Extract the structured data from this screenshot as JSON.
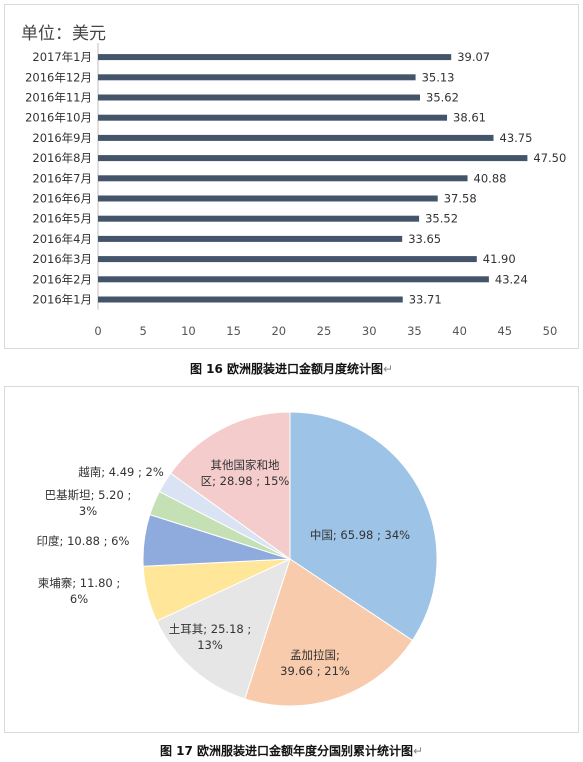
{
  "chart_data": [
    {
      "type": "bar",
      "orientation": "horizontal",
      "unit_label": "单位：美元",
      "categories": [
        "2017年1月",
        "2016年12月",
        "2016年11月",
        "2016年10月",
        "2016年9月",
        "2016年8月",
        "2016年7月",
        "2016年6月",
        "2016年5月",
        "2016年4月",
        "2016年3月",
        "2016年2月",
        "2016年1月"
      ],
      "values": [
        39.07,
        35.13,
        35.62,
        38.61,
        43.75,
        47.5,
        40.88,
        37.58,
        35.52,
        33.65,
        41.9,
        43.24,
        33.71
      ],
      "value_labels": [
        "39.07",
        "35.13",
        "35.62",
        "38.61",
        "43.75",
        "47.50",
        "40.88",
        "37.58",
        "35.52",
        "33.65",
        "41.90",
        "43.24",
        "33.71"
      ],
      "xlim": [
        0,
        50
      ],
      "xticks": [
        0,
        5,
        10,
        15,
        20,
        25,
        30,
        35,
        40,
        45,
        50
      ],
      "bar_color": "#44546a",
      "grid": false,
      "legend": "none"
    },
    {
      "type": "pie",
      "slices": [
        {
          "name": "中国",
          "value": 65.98,
          "percent": "34%",
          "label_lines": [
            "中国; 65.98 ; 34%"
          ],
          "color": "#9dc3e6"
        },
        {
          "name": "孟加拉国",
          "value": 39.66,
          "percent": "21%",
          "label_lines": [
            "孟加拉国;",
            "39.66 ; 21%"
          ],
          "color": "#f8cbad"
        },
        {
          "name": "土耳其",
          "value": 25.18,
          "percent": "13%",
          "label_lines": [
            "土耳其; 25.18 ;",
            "13%"
          ],
          "color": "#e7e6e6"
        },
        {
          "name": "柬埔寨",
          "value": 11.8,
          "percent": "6%",
          "label_lines": [
            "柬埔寨; 11.80 ;",
            "6%"
          ],
          "color": "#ffe699"
        },
        {
          "name": "印度",
          "value": 10.88,
          "percent": "6%",
          "label_lines": [
            "印度; 10.88 ; 6%"
          ],
          "color": "#8faadc"
        },
        {
          "name": "巴基斯坦",
          "value": 5.2,
          "percent": "3%",
          "label_lines": [
            "巴基斯坦; 5.20 ;",
            "3%"
          ],
          "color": "#c5e0b4"
        },
        {
          "name": "越南",
          "value": 4.49,
          "percent": "2%",
          "label_lines": [
            "越南; 4.49 ; 2%"
          ],
          "color": "#dae3f3"
        },
        {
          "name": "其他国家和地区",
          "value": 28.98,
          "percent": "15%",
          "label_lines": [
            "其他国家和地",
            "区; 28.98 ; 15%"
          ],
          "color": "#f4cccc"
        }
      ],
      "legend": "none"
    }
  ],
  "captions": {
    "figure16": "图 16 欧洲服装进口金额月度统计图",
    "figure17": "图 17 欧洲服装进口金额年度分国别累计统计图",
    "return_mark": "↵"
  }
}
